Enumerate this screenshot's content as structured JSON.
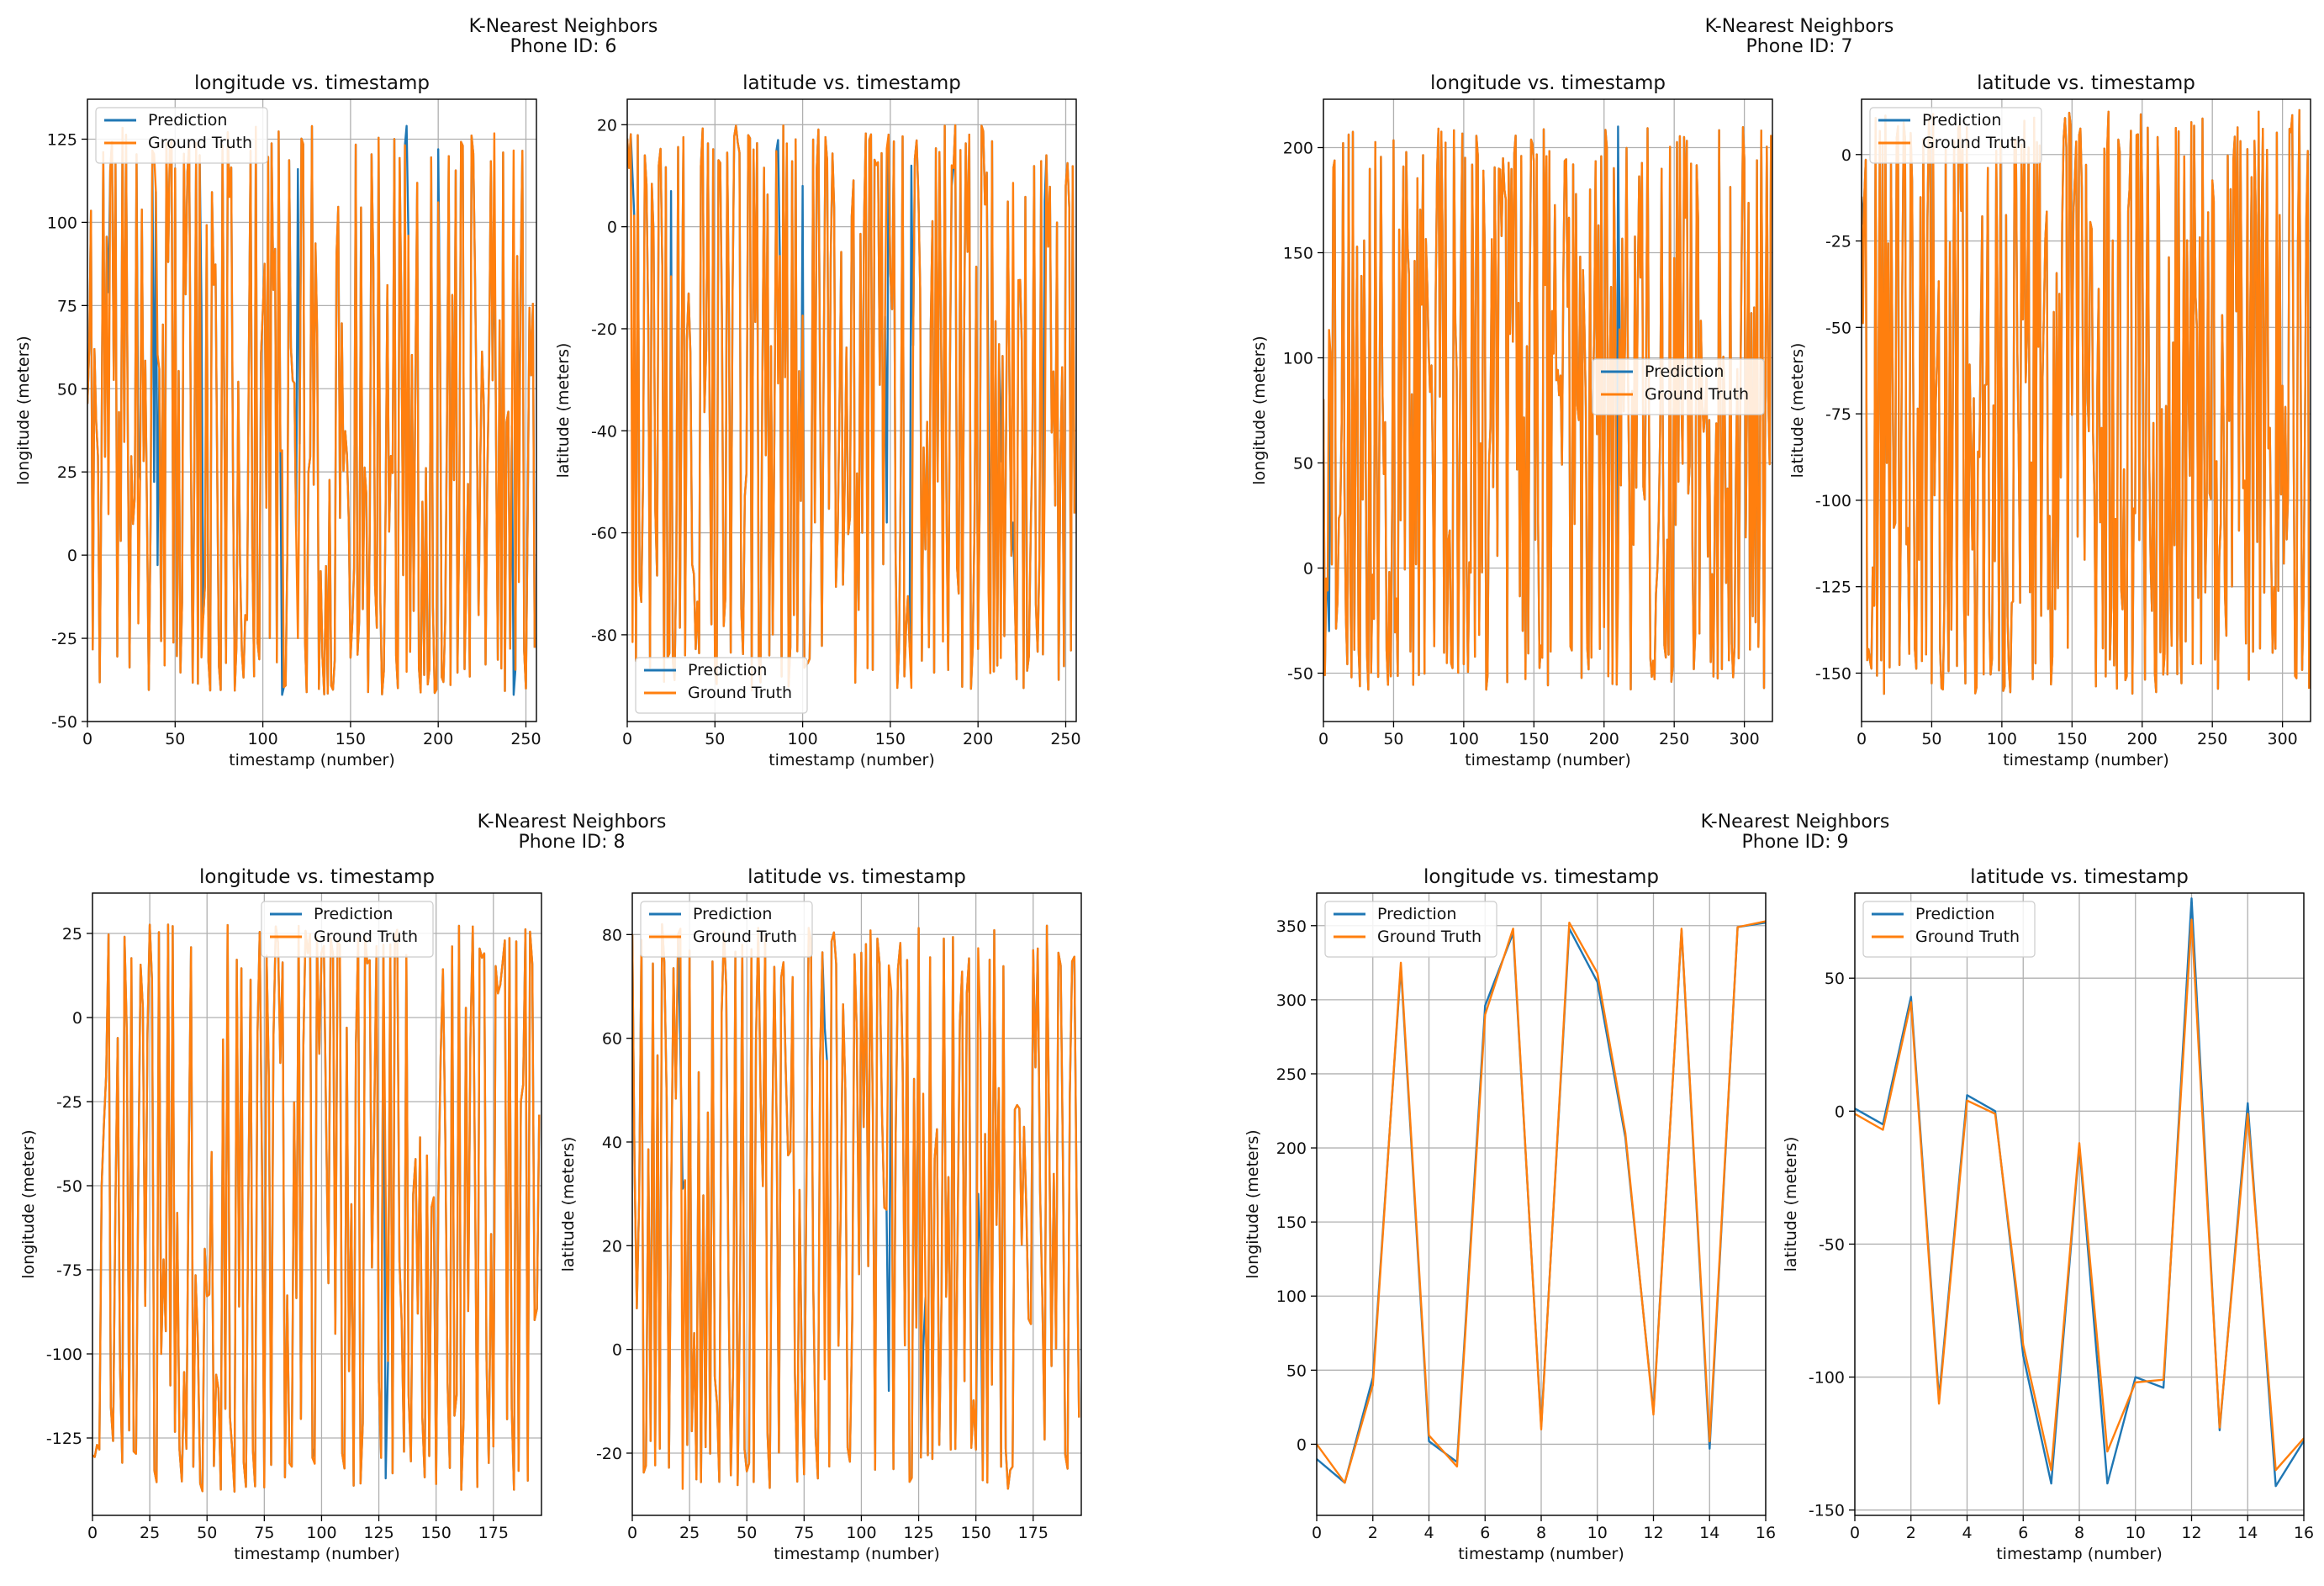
{
  "colors": {
    "prediction": "#1f77b4",
    "ground_truth": "#ff7f0e",
    "grid": "#b0b0b0",
    "axis": "#000000"
  },
  "chart_data": [
    {
      "figure_title": "K-Nearest Neighbors",
      "figure_subtitle": "Phone ID: 6",
      "subplots": [
        {
          "type": "line",
          "title": "longitude vs. timestamp",
          "xlabel": "timestamp (number)",
          "ylabel": "longitude (meters)",
          "xlim": [
            0,
            256
          ],
          "ylim": [
            -50,
            137
          ],
          "xticks": [
            0,
            50,
            100,
            150,
            200,
            250
          ],
          "yticks": [
            -50,
            -25,
            0,
            25,
            50,
            75,
            100,
            125
          ],
          "grid": true,
          "legend": "top-left",
          "n_points": 256,
          "pattern": "random",
          "seed": 11,
          "value_range": [
            -42,
            129
          ],
          "prediction_deviations": [
            [
              12,
              79
            ],
            [
              29,
              28
            ],
            [
              38,
              22
            ],
            [
              40,
              -3
            ],
            [
              65,
              74
            ],
            [
              111,
              -42
            ],
            [
              120,
              116
            ],
            [
              182,
              129
            ],
            [
              200,
              122
            ],
            [
              232,
              105
            ],
            [
              243,
              -42
            ],
            [
              246,
              23
            ]
          ],
          "series": [
            {
              "name": "Prediction"
            },
            {
              "name": "Ground Truth"
            }
          ]
        },
        {
          "type": "line",
          "title": "latitude vs. timestamp",
          "xlabel": "timestamp (number)",
          "ylabel": "latitude (meters)",
          "xlim": [
            0,
            256
          ],
          "ylim": [
            -97,
            25
          ],
          "xticks": [
            0,
            50,
            100,
            150,
            200,
            250
          ],
          "yticks": [
            -80,
            -60,
            -40,
            -20,
            0,
            20
          ],
          "grid": true,
          "legend": "bottom-left",
          "n_points": 256,
          "pattern": "random",
          "seed": 23,
          "value_range": [
            -91,
            20
          ],
          "prediction_deviations": [
            [
              3,
              10
            ],
            [
              25,
              7
            ],
            [
              86,
              17
            ],
            [
              100,
              8
            ],
            [
              101,
              -86
            ],
            [
              148,
              -58
            ],
            [
              162,
              12
            ],
            [
              180,
              -71
            ],
            [
              185,
              8
            ],
            [
              206,
              -37
            ],
            [
              213,
              -46
            ],
            [
              220,
              -58
            ],
            [
              238,
              5
            ]
          ],
          "series": [
            {
              "name": "Prediction"
            },
            {
              "name": "Ground Truth"
            }
          ]
        }
      ]
    },
    {
      "figure_title": "K-Nearest Neighbors",
      "figure_subtitle": "Phone ID: 7",
      "subplots": [
        {
          "type": "line",
          "title": "longitude vs. timestamp",
          "xlabel": "timestamp (number)",
          "ylabel": "longitude (meters)",
          "xlim": [
            0,
            320
          ],
          "ylim": [
            -73,
            223
          ],
          "xticks": [
            0,
            50,
            100,
            150,
            200,
            250,
            300
          ],
          "yticks": [
            -50,
            0,
            50,
            100,
            150,
            200
          ],
          "grid": true,
          "legend": "center-right",
          "n_points": 320,
          "pattern": "random",
          "seed": 37,
          "value_range": [
            -58,
            210
          ],
          "prediction_deviations": [
            [
              4,
              -30
            ],
            [
              210,
              210
            ]
          ],
          "series": [
            {
              "name": "Prediction"
            },
            {
              "name": "Ground Truth"
            }
          ]
        },
        {
          "type": "line",
          "title": "latitude vs. timestamp",
          "xlabel": "timestamp (number)",
          "ylabel": "latitude (meters)",
          "xlim": [
            0,
            320
          ],
          "ylim": [
            -164,
            16
          ],
          "xticks": [
            0,
            50,
            100,
            150,
            200,
            250,
            300
          ],
          "yticks": [
            -150,
            -125,
            -100,
            -75,
            -50,
            -25,
            0
          ],
          "grid": true,
          "legend": "top-left",
          "n_points": 320,
          "pattern": "random",
          "seed": 41,
          "value_range": [
            -156,
            13
          ],
          "prediction_deviations": [
            [
              1,
              -20
            ]
          ],
          "series": [
            {
              "name": "Prediction"
            },
            {
              "name": "Ground Truth"
            }
          ]
        }
      ]
    },
    {
      "figure_title": "K-Nearest Neighbors",
      "figure_subtitle": "Phone ID: 8",
      "subplots": [
        {
          "type": "line",
          "title": "longitude vs. timestamp",
          "xlabel": "timestamp (number)",
          "ylabel": "longitude (meters)",
          "xlim": [
            0,
            196
          ],
          "ylim": [
            -148,
            37
          ],
          "xticks": [
            0,
            25,
            50,
            75,
            100,
            125,
            150,
            175
          ],
          "yticks": [
            -125,
            -100,
            -75,
            -50,
            -25,
            0,
            25
          ],
          "grid": true,
          "legend": "top-center",
          "n_points": 196,
          "pattern": "random",
          "seed": 53,
          "value_range": [
            -141,
            28
          ],
          "prediction_deviations": [
            [
              128,
              -137
            ],
            [
              97,
              -128
            ]
          ],
          "series": [
            {
              "name": "Prediction"
            },
            {
              "name": "Ground Truth"
            }
          ]
        },
        {
          "type": "line",
          "title": "latitude vs. timestamp",
          "xlabel": "timestamp (number)",
          "ylabel": "latitude (meters)",
          "xlim": [
            0,
            196
          ],
          "ylim": [
            -32,
            88
          ],
          "xticks": [
            0,
            25,
            50,
            75,
            100,
            125,
            150,
            175
          ],
          "yticks": [
            -20,
            0,
            20,
            40,
            60,
            80
          ],
          "grid": true,
          "legend": "top-left",
          "n_points": 196,
          "pattern": "random",
          "seed": 67,
          "value_range": [
            -27,
            82
          ],
          "prediction_deviations": [
            [
              21,
              57
            ],
            [
              22,
              31
            ],
            [
              84,
              62
            ],
            [
              112,
              -8
            ],
            [
              127,
              0
            ],
            [
              128,
              10
            ],
            [
              151,
              30
            ],
            [
              152,
              19
            ]
          ],
          "series": [
            {
              "name": "Prediction"
            },
            {
              "name": "Ground Truth"
            }
          ]
        }
      ]
    },
    {
      "figure_title": "K-Nearest Neighbors",
      "figure_subtitle": "Phone ID: 9",
      "subplots": [
        {
          "type": "line",
          "title": "longitude vs. timestamp",
          "xlabel": "timestamp (number)",
          "ylabel": "longitude (meters)",
          "xlim": [
            0,
            16
          ],
          "ylim": [
            -48,
            372
          ],
          "xticks": [
            0,
            2,
            4,
            6,
            8,
            10,
            12,
            14,
            16
          ],
          "yticks": [
            0,
            50,
            100,
            150,
            200,
            250,
            300,
            350
          ],
          "grid": true,
          "legend": "top-left",
          "x": [
            0,
            1,
            2,
            3,
            4,
            5,
            6,
            7,
            8,
            9,
            10,
            11,
            12,
            13,
            14,
            15,
            16
          ],
          "series": [
            {
              "name": "Prediction",
              "values": [
                -10,
                -26,
                45,
                322,
                2,
                -12,
                296,
                345,
                12,
                348,
                312,
                207,
                22,
                347,
                -3,
                349,
                352
              ]
            },
            {
              "name": "Ground Truth",
              "values": [
                0,
                -26,
                40,
                325,
                6,
                -15,
                290,
                348,
                10,
                352,
                318,
                210,
                20,
                348,
                2,
                349,
                353
              ]
            }
          ]
        },
        {
          "type": "line",
          "title": "latitude vs. timestamp",
          "xlabel": "timestamp (number)",
          "ylabel": "latitude (meters)",
          "xlim": [
            0,
            16
          ],
          "ylim": [
            -152,
            82
          ],
          "xticks": [
            0,
            2,
            4,
            6,
            8,
            10,
            12,
            14,
            16
          ],
          "yticks": [
            -150,
            -100,
            -50,
            0,
            50
          ],
          "grid": true,
          "legend": "top-left",
          "x": [
            0,
            1,
            2,
            3,
            4,
            5,
            6,
            7,
            8,
            9,
            10,
            11,
            12,
            13,
            14,
            15,
            16
          ],
          "series": [
            {
              "name": "Prediction",
              "values": [
                1,
                -5,
                43,
                -108,
                6,
                0,
                -92,
                -140,
                -13,
                -140,
                -100,
                -104,
                80,
                -120,
                3,
                -141,
                -124
              ]
            },
            {
              "name": "Ground Truth",
              "values": [
                -1,
                -7,
                41,
                -110,
                4,
                -1,
                -88,
                -135,
                -12,
                -128,
                -102,
                -101,
                72,
                -119,
                -1,
                -135,
                -123
              ]
            }
          ]
        }
      ]
    }
  ]
}
